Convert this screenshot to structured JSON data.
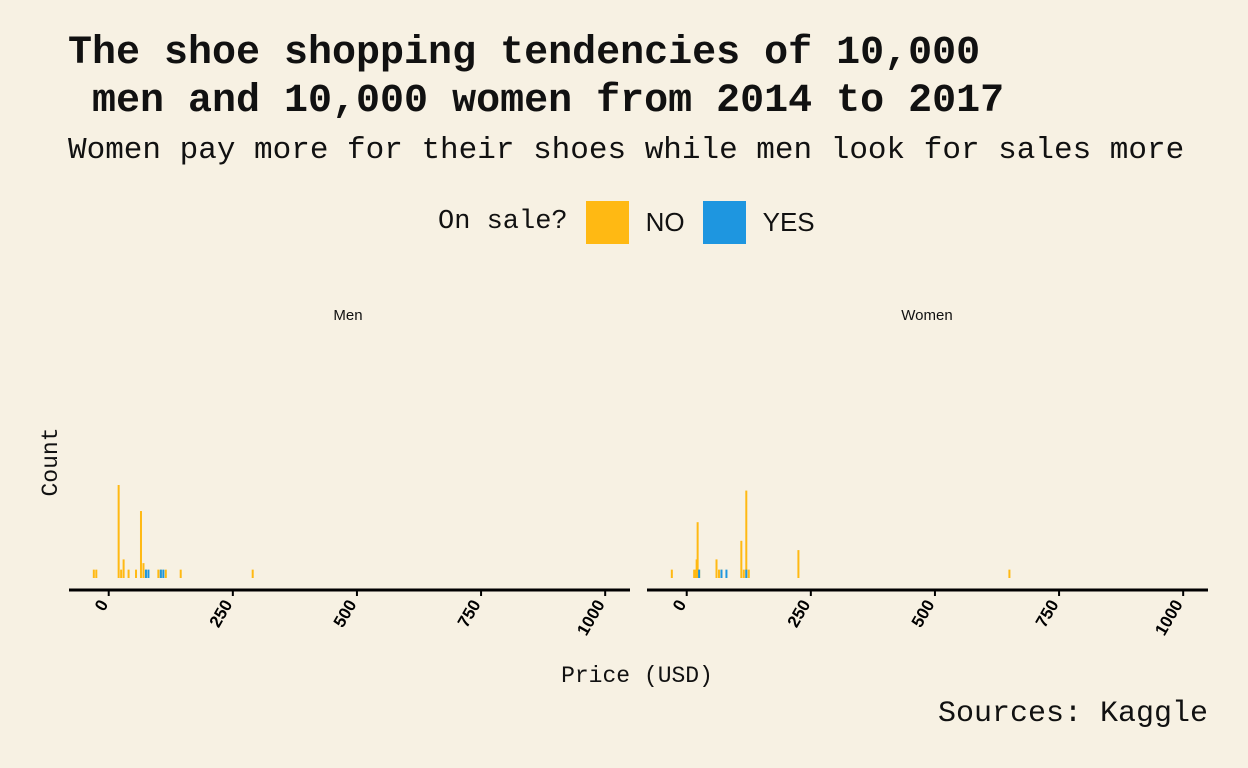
{
  "title": "The shoe shopping tendencies of 10,000\n men and 10,000 women from 2014 to 2017",
  "subtitle": "Women pay more for their shoes while men look for sales more",
  "legend": {
    "title": "On sale?",
    "items": [
      {
        "label": "NO",
        "color": "#ffb913"
      },
      {
        "label": "YES",
        "color": "#1e96e0"
      }
    ]
  },
  "source": "Sources: Kaggle",
  "chart_data": {
    "type": "bar",
    "facets": [
      "Men",
      "Women"
    ],
    "xlabel": "Price (USD)",
    "ylabel": "Count",
    "xlim": [
      -80,
      1050
    ],
    "x_ticks": [
      0,
      250,
      500,
      750,
      1000
    ],
    "ylim": [
      0,
      100
    ],
    "y_ticks_shown": false,
    "grid": false,
    "legend_position": "top",
    "series": [
      {
        "facet": "Men",
        "sale": "NO",
        "x": [
          -30,
          -25,
          20,
          25,
          30,
          40,
          55,
          65,
          70,
          75,
          100,
          105,
          115,
          145,
          290
        ],
        "y": [
          9,
          9,
          100,
          9,
          20,
          9,
          9,
          72,
          16,
          9,
          9,
          9,
          9,
          9,
          9
        ]
      },
      {
        "facet": "Men",
        "sale": "YES",
        "x": [
          75,
          80,
          105,
          110
        ],
        "y": [
          9,
          9,
          9,
          9
        ]
      },
      {
        "facet": "Women",
        "sale": "NO",
        "x": [
          -30,
          15,
          18,
          20,
          22,
          25,
          60,
          65,
          70,
          110,
          115,
          120,
          125,
          225,
          650
        ],
        "y": [
          9,
          9,
          9,
          20,
          60,
          9,
          20,
          9,
          9,
          40,
          9,
          94,
          9,
          30,
          9
        ]
      },
      {
        "facet": "Women",
        "sale": "YES",
        "x": [
          25,
          70,
          80,
          120
        ],
        "y": [
          9,
          9,
          9,
          9
        ]
      }
    ]
  }
}
